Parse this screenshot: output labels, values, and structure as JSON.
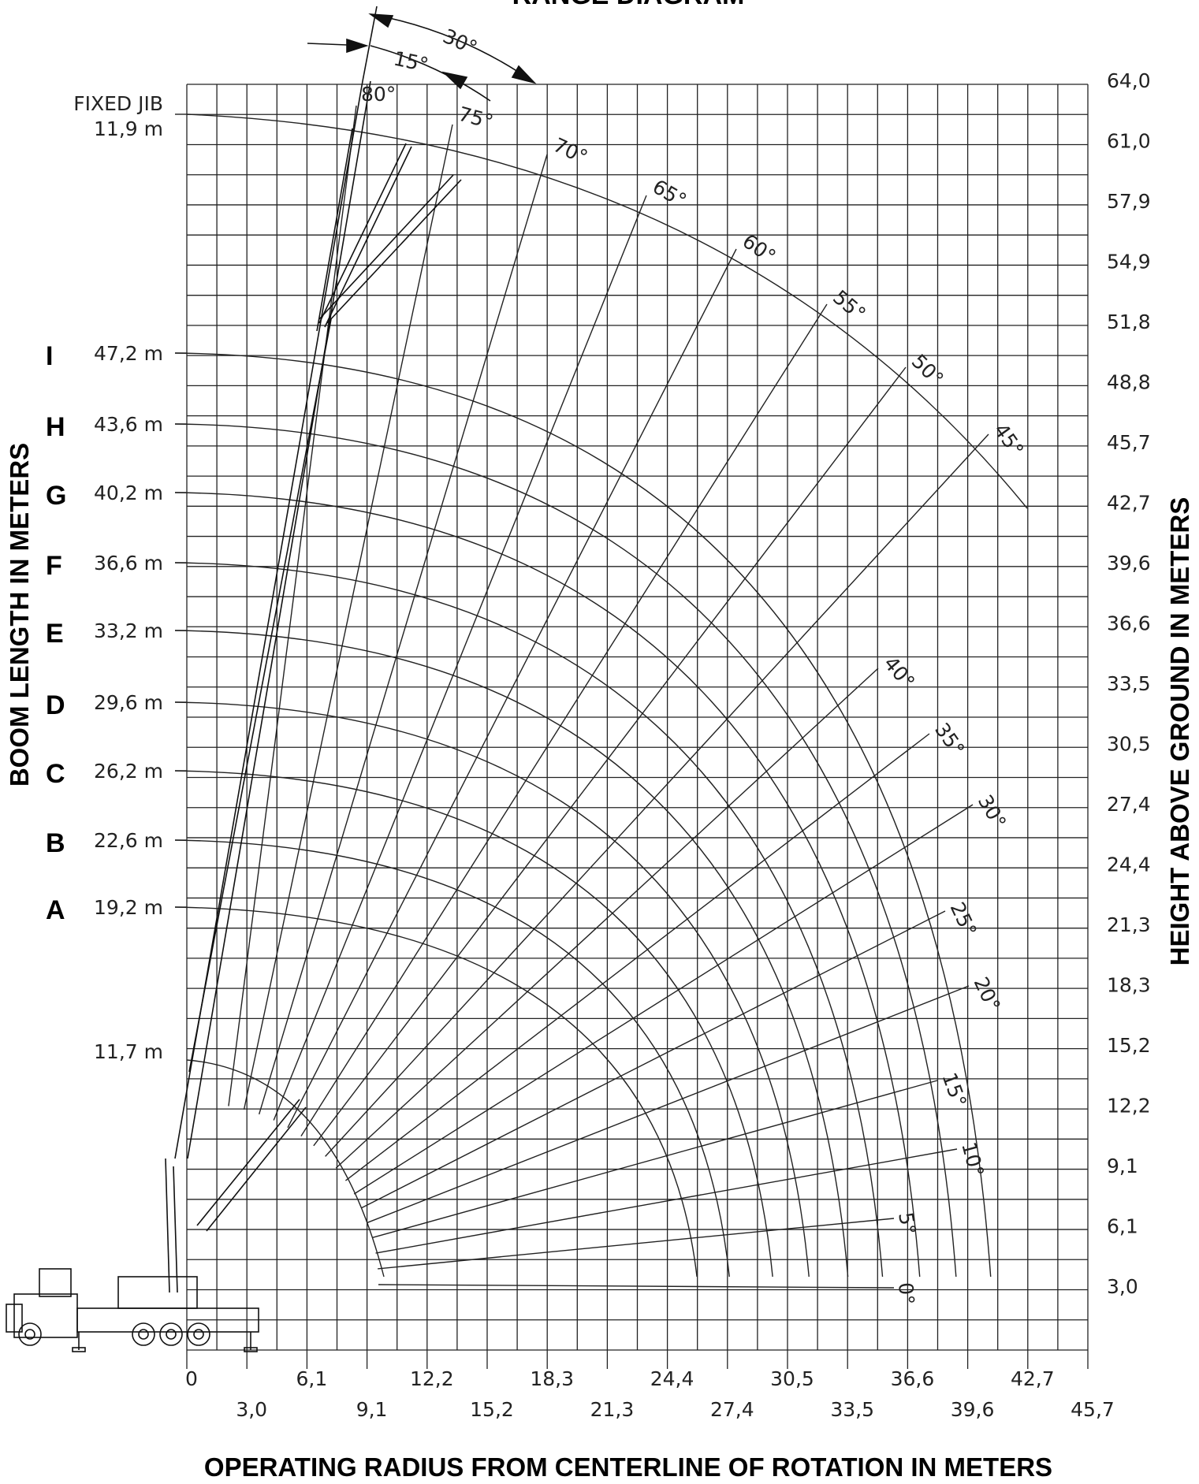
{
  "title": "RANGE DIAGRAM",
  "axes": {
    "x_title": "OPERATING RADIUS FROM CENTERLINE OF ROTATION IN METERS",
    "y_left_title": "BOOM LENGTH IN METERS",
    "y_right_title": "HEIGHT ABOVE GROUND IN METERS",
    "x_ticks_upper": [
      "0",
      "6,1",
      "12,2",
      "18,3",
      "24,4",
      "30,5",
      "36,6",
      "42,7"
    ],
    "x_ticks_lower": [
      "3,0",
      "9,1",
      "15,2",
      "21,3",
      "27,4",
      "33,5",
      "39,6",
      "45,7"
    ],
    "y_ticks": [
      "3,0",
      "6,1",
      "9,1",
      "12,2",
      "15,2",
      "18,3",
      "21,3",
      "24,4",
      "27,4",
      "30,5",
      "33,5",
      "36,6",
      "39,6",
      "42,7",
      "45,7",
      "48,8",
      "51,8",
      "54,9",
      "57,9",
      "61,0",
      "64,0"
    ]
  },
  "boom_sections": [
    {
      "letter": "A",
      "length": "19,2  m"
    },
    {
      "letter": "B",
      "length": "22,6  m"
    },
    {
      "letter": "C",
      "length": "26,2  m"
    },
    {
      "letter": "D",
      "length": "29,6  m"
    },
    {
      "letter": "E",
      "length": "33,2  m"
    },
    {
      "letter": "F",
      "length": "36,6  m"
    },
    {
      "letter": "G",
      "length": "40,2  m"
    },
    {
      "letter": "H",
      "length": "43,6  m"
    },
    {
      "letter": "I",
      "length": "47,2  m"
    }
  ],
  "base_boom": "11,7  m",
  "jib": {
    "label": "FIXED  JIB",
    "length": "11,9  m",
    "offset_labels": [
      "15°",
      "30°"
    ]
  },
  "angle_labels": [
    "80°",
    "75°",
    "70°",
    "65°",
    "60°",
    "55°",
    "50°",
    "45°",
    "40°",
    "35°",
    "30°",
    "25°",
    "20°",
    "15°",
    "10°",
    "5°",
    "0°"
  ],
  "colors": {
    "line": "#1a1a1a",
    "background": "#ffffff"
  }
}
